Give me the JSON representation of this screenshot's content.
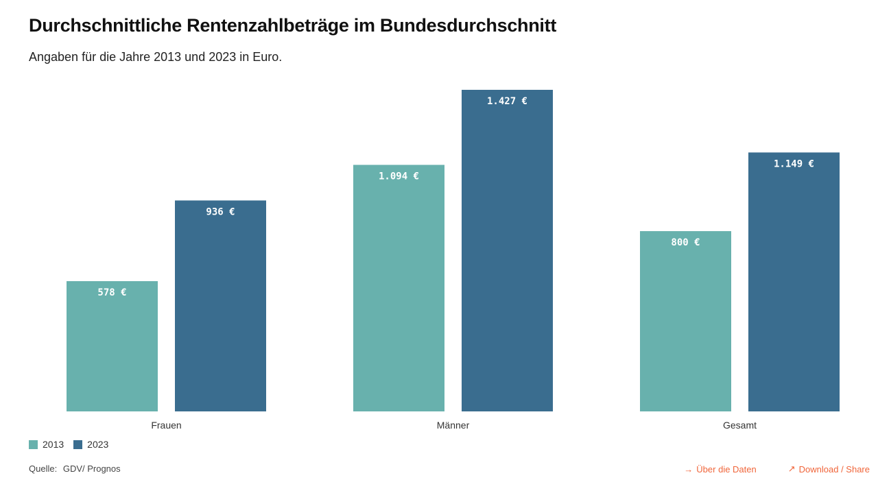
{
  "title": "Durchschnittliche Rentenzahlbeträge im Bundesdurchschnitt",
  "subtitle": "Angaben für die Jahre 2013 und 2023 in Euro.",
  "colors": {
    "series_2013": "#68b1ad",
    "series_2023": "#3a6d8f",
    "link": "#f0653a"
  },
  "chart_data": {
    "type": "bar",
    "categories": [
      "Frauen",
      "Männer",
      "Gesamt"
    ],
    "series": [
      {
        "name": "2013",
        "values": [
          578,
          1094,
          800
        ],
        "labels": [
          "578 €",
          "1.094 €",
          "800 €"
        ]
      },
      {
        "name": "2023",
        "values": [
          936,
          1427,
          1149
        ],
        "labels": [
          "936 €",
          "1.427 €",
          "1.149 €"
        ]
      }
    ],
    "ylim": [
      0,
      1427
    ],
    "grid": false,
    "legend": "bottom-left"
  },
  "legend": {
    "items": [
      {
        "label": "2013"
      },
      {
        "label": "2023"
      }
    ]
  },
  "source": {
    "label": "Quelle:",
    "value": "GDV/ Prognos"
  },
  "links": {
    "about": {
      "icon": "arrow-right-icon",
      "glyph": "→",
      "label": "Über die Daten"
    },
    "download": {
      "icon": "arrow-up-right-icon",
      "glyph": "↗",
      "label": "Download / Share"
    }
  }
}
